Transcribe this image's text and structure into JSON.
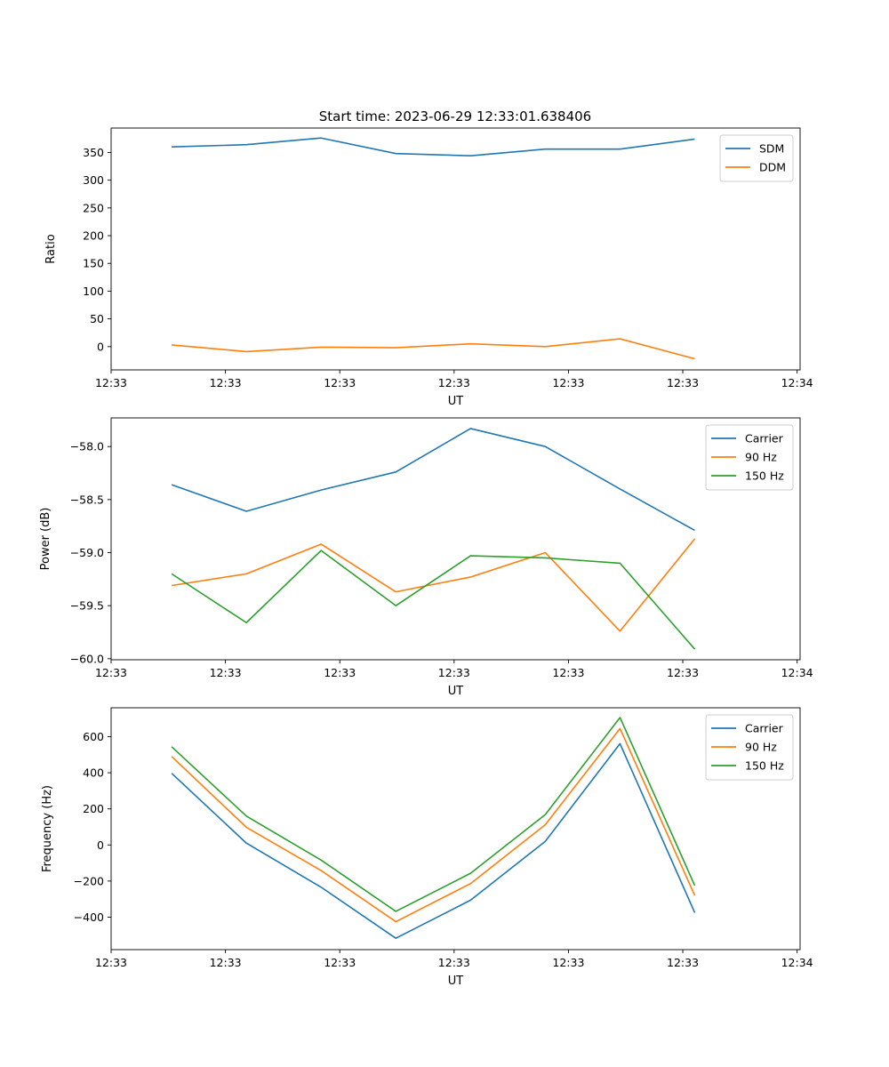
{
  "figure": {
    "title": "Start time: 2023-06-29 12:33:01.638406"
  },
  "chart_data": [
    {
      "type": "line",
      "title": "Start time: 2023-06-29 12:33:01.638406",
      "xlabel": "UT",
      "ylabel": "Ratio",
      "x": [
        1,
        2,
        3,
        4,
        5,
        6,
        7,
        8
      ],
      "xlim": [
        0.19,
        9.41
      ],
      "ylim": [
        -42,
        394
      ],
      "x_ticks": [
        {
          "at": 0.19,
          "label": "12:33"
        },
        {
          "at": 1.72,
          "label": "12:33"
        },
        {
          "at": 3.25,
          "label": "12:33"
        },
        {
          "at": 4.78,
          "label": "12:33"
        },
        {
          "at": 6.31,
          "label": "12:33"
        },
        {
          "at": 7.84,
          "label": "12:33"
        },
        {
          "at": 9.37,
          "label": "12:34"
        }
      ],
      "y_ticks": [
        {
          "at": 0,
          "label": "0"
        },
        {
          "at": 50,
          "label": "50"
        },
        {
          "at": 100,
          "label": "100"
        },
        {
          "at": 150,
          "label": "150"
        },
        {
          "at": 200,
          "label": "200"
        },
        {
          "at": 250,
          "label": "250"
        },
        {
          "at": 300,
          "label": "300"
        },
        {
          "at": 350,
          "label": "350"
        }
      ],
      "legend_position": "top-right",
      "series": [
        {
          "name": "SDM",
          "color": "#1f77b4",
          "values": [
            360,
            364,
            376,
            348,
            344,
            356,
            356,
            374
          ]
        },
        {
          "name": "DDM",
          "color": "#ff7f0e",
          "values": [
            3,
            -9,
            -1,
            -2,
            5,
            0,
            14,
            -22
          ]
        }
      ]
    },
    {
      "type": "line",
      "xlabel": "UT",
      "ylabel": "Power (dB)",
      "x": [
        1,
        2,
        3,
        4,
        5,
        6,
        7,
        8
      ],
      "xlim": [
        0.19,
        9.41
      ],
      "ylim": [
        -60.01,
        -57.73
      ],
      "x_ticks": [
        {
          "at": 0.19,
          "label": "12:33"
        },
        {
          "at": 1.72,
          "label": "12:33"
        },
        {
          "at": 3.25,
          "label": "12:33"
        },
        {
          "at": 4.78,
          "label": "12:33"
        },
        {
          "at": 6.31,
          "label": "12:33"
        },
        {
          "at": 7.84,
          "label": "12:33"
        },
        {
          "at": 9.37,
          "label": "12:34"
        }
      ],
      "y_ticks": [
        {
          "at": -60.0,
          "label": "−60.0"
        },
        {
          "at": -59.5,
          "label": "−59.5"
        },
        {
          "at": -59.0,
          "label": "−59.0"
        },
        {
          "at": -58.5,
          "label": "−58.5"
        },
        {
          "at": -58.0,
          "label": "−58.0"
        }
      ],
      "legend_position": "top-right",
      "series": [
        {
          "name": "Carrier",
          "color": "#1f77b4",
          "values": [
            -58.36,
            -58.61,
            -58.41,
            -58.24,
            -57.83,
            -58.0,
            -58.4,
            -58.79
          ]
        },
        {
          "name": "90 Hz",
          "color": "#ff7f0e",
          "values": [
            -59.31,
            -59.2,
            -58.92,
            -59.37,
            -59.23,
            -59.0,
            -59.74,
            -58.87
          ]
        },
        {
          "name": "150 Hz",
          "color": "#2ca02c",
          "values": [
            -59.2,
            -59.66,
            -58.98,
            -59.5,
            -59.03,
            -59.05,
            -59.1,
            -59.91
          ]
        }
      ]
    },
    {
      "type": "line",
      "xlabel": "UT",
      "ylabel": "Frequency (Hz)",
      "x": [
        1,
        2,
        3,
        4,
        5,
        6,
        7,
        8
      ],
      "xlim": [
        0.19,
        9.41
      ],
      "ylim": [
        -580,
        760
      ],
      "x_ticks": [
        {
          "at": 0.19,
          "label": "12:33"
        },
        {
          "at": 1.72,
          "label": "12:33"
        },
        {
          "at": 3.25,
          "label": "12:33"
        },
        {
          "at": 4.78,
          "label": "12:33"
        },
        {
          "at": 6.31,
          "label": "12:33"
        },
        {
          "at": 7.84,
          "label": "12:33"
        },
        {
          "at": 9.37,
          "label": "12:34"
        }
      ],
      "y_ticks": [
        {
          "at": -400,
          "label": "−400"
        },
        {
          "at": -200,
          "label": "−200"
        },
        {
          "at": 0,
          "label": "0"
        },
        {
          "at": 200,
          "label": "200"
        },
        {
          "at": 400,
          "label": "400"
        },
        {
          "at": 600,
          "label": "600"
        }
      ],
      "legend_position": "top-right",
      "series": [
        {
          "name": "Carrier",
          "color": "#1f77b4",
          "values": [
            397,
            10,
            -234,
            -517,
            -306,
            20,
            561,
            -375
          ]
        },
        {
          "name": "90 Hz",
          "color": "#ff7f0e",
          "values": [
            490,
            98,
            -142,
            -425,
            -214,
            112,
            645,
            -280
          ]
        },
        {
          "name": "150 Hz",
          "color": "#2ca02c",
          "values": [
            544,
            160,
            -84,
            -368,
            -157,
            168,
            706,
            -225
          ]
        }
      ]
    }
  ]
}
